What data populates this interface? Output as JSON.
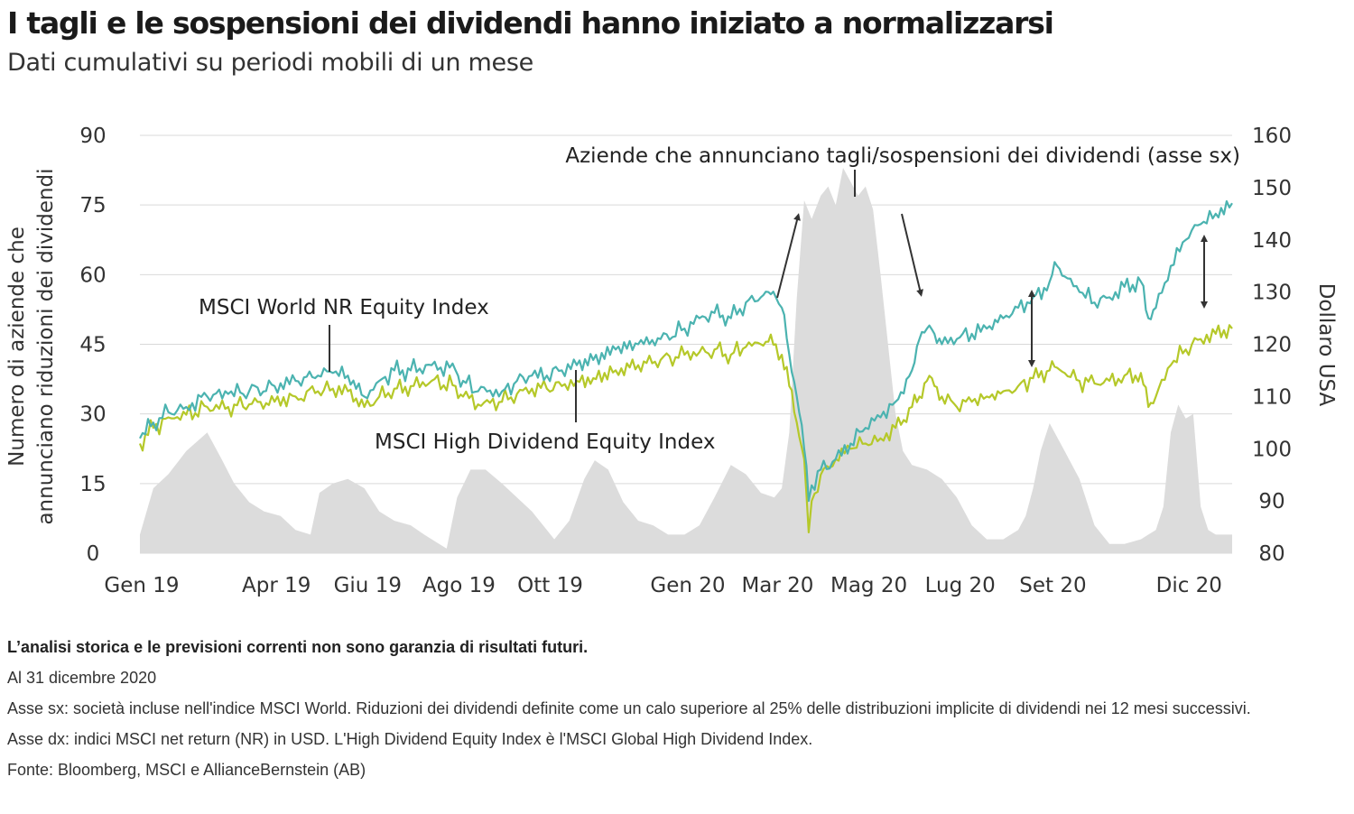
{
  "title": "I tagli e le sospensioni dei dividendi hanno iniziato a normalizzarsi",
  "subtitle": "Dati cumulativi su periodi mobili di un mese",
  "chart_data": {
    "type": "area",
    "colors": {
      "cuts": "#dcdcdc",
      "world": "#4bb3b0",
      "highdiv": "#b5c829",
      "grid": "#d9d9d9"
    },
    "x_tick_labels": [
      "Gen 19",
      "Apr 19",
      "Giu 19",
      "Ago 19",
      "Ott 19",
      "Gen 20",
      "Mar 20",
      "Mag 20",
      "Lug 20",
      "Set 20",
      "Dic 20"
    ],
    "x_tick_dates": [
      "2019-01-01",
      "2019-04-01",
      "2019-06-01",
      "2019-08-01",
      "2019-10-01",
      "2020-01-01",
      "2020-03-01",
      "2020-05-01",
      "2020-07-01",
      "2020-09-01",
      "2020-12-01"
    ],
    "x_range": [
      "2019-01-01",
      "2020-12-31"
    ],
    "y_left": {
      "label": "Numero di aziende che annunciano riduzioni dei dividendi",
      "ticks": [
        0,
        15,
        30,
        45,
        60,
        75,
        90
      ],
      "range": [
        0,
        90
      ]
    },
    "y_right": {
      "label": "Dollaro USA",
      "ticks": [
        80,
        90,
        100,
        110,
        120,
        130,
        140,
        150,
        160
      ],
      "range": [
        80,
        160
      ]
    },
    "grid": true,
    "series": [
      {
        "key": "cuts",
        "axis": "left",
        "kind": "area",
        "x": [
          "2019-01-01",
          "2019-01-10",
          "2019-01-20",
          "2019-02-01",
          "2019-02-15",
          "2019-02-25",
          "2019-03-05",
          "2019-03-15",
          "2019-03-25",
          "2019-04-05",
          "2019-04-15",
          "2019-04-25",
          "2019-05-01",
          "2019-05-10",
          "2019-05-20",
          "2019-05-31",
          "2019-06-10",
          "2019-06-20",
          "2019-07-01",
          "2019-07-10",
          "2019-07-20",
          "2019-07-25",
          "2019-08-01",
          "2019-08-10",
          "2019-08-20",
          "2019-08-31",
          "2019-09-10",
          "2019-09-20",
          "2019-09-30",
          "2019-10-05",
          "2019-10-15",
          "2019-10-25",
          "2019-11-01",
          "2019-11-10",
          "2019-11-20",
          "2019-11-30",
          "2019-12-10",
          "2019-12-20",
          "2019-12-31",
          "2020-01-10",
          "2020-01-20",
          "2020-01-31",
          "2020-02-10",
          "2020-02-20",
          "2020-02-29",
          "2020-03-05",
          "2020-03-10",
          "2020-03-15",
          "2020-03-20",
          "2020-03-25",
          "2020-03-31",
          "2020-04-05",
          "2020-04-10",
          "2020-04-15",
          "2020-04-20",
          "2020-04-25",
          "2020-04-30",
          "2020-05-05",
          "2020-05-10",
          "2020-05-15",
          "2020-05-20",
          "2020-05-25",
          "2020-05-31",
          "2020-06-10",
          "2020-06-20",
          "2020-06-30",
          "2020-07-10",
          "2020-07-20",
          "2020-07-31",
          "2020-08-05",
          "2020-08-10",
          "2020-08-15",
          "2020-08-20",
          "2020-08-25",
          "2020-08-31",
          "2020-09-10",
          "2020-09-20",
          "2020-09-30",
          "2020-10-10",
          "2020-10-20",
          "2020-10-31",
          "2020-11-05",
          "2020-11-10",
          "2020-11-15",
          "2020-11-20",
          "2020-11-25",
          "2020-11-30",
          "2020-12-05",
          "2020-12-10",
          "2020-12-15",
          "2020-12-20",
          "2020-12-31"
        ],
        "values": [
          4,
          14,
          17,
          22,
          26,
          20,
          15,
          11,
          9,
          8,
          5,
          4,
          13,
          15,
          16,
          14,
          9,
          7,
          6,
          4,
          2,
          1,
          12,
          18,
          18,
          15,
          12,
          9,
          5,
          3,
          7,
          16,
          20,
          18,
          11,
          7,
          6,
          4,
          4,
          6,
          12,
          19,
          17,
          13,
          12,
          14,
          26,
          55,
          76,
          72,
          77,
          79,
          75,
          83,
          80,
          77,
          79,
          74,
          60,
          45,
          30,
          22,
          19,
          18,
          16,
          12,
          6,
          3,
          3,
          4,
          5,
          8,
          14,
          22,
          28,
          22,
          16,
          6,
          2,
          2,
          3,
          4,
          5,
          10,
          26,
          32,
          29,
          30,
          10,
          5,
          4,
          4
        ]
      },
      {
        "key": "world",
        "axis": "right",
        "name": "MSCI World NR Equity Index",
        "kind": "line",
        "x": [
          "2019-01-01",
          "2019-01-10",
          "2019-01-20",
          "2019-02-01",
          "2019-02-15",
          "2019-03-01",
          "2019-03-15",
          "2019-04-01",
          "2019-04-15",
          "2019-04-30",
          "2019-05-10",
          "2019-05-20",
          "2019-05-31",
          "2019-06-10",
          "2019-06-20",
          "2019-07-01",
          "2019-07-15",
          "2019-07-31",
          "2019-08-05",
          "2019-08-15",
          "2019-08-31",
          "2019-09-10",
          "2019-09-20",
          "2019-09-30",
          "2019-10-10",
          "2019-10-20",
          "2019-10-31",
          "2019-11-15",
          "2019-11-30",
          "2019-12-15",
          "2019-12-31",
          "2020-01-10",
          "2020-01-20",
          "2020-01-31",
          "2020-02-10",
          "2020-02-20",
          "2020-02-25",
          "2020-03-01",
          "2020-03-05",
          "2020-03-10",
          "2020-03-15",
          "2020-03-20",
          "2020-03-23",
          "2020-03-25",
          "2020-03-31",
          "2020-04-10",
          "2020-04-20",
          "2020-04-30",
          "2020-05-10",
          "2020-05-20",
          "2020-05-31",
          "2020-06-05",
          "2020-06-10",
          "2020-06-15",
          "2020-06-20",
          "2020-06-30",
          "2020-07-10",
          "2020-07-20",
          "2020-07-31",
          "2020-08-10",
          "2020-08-20",
          "2020-08-31",
          "2020-09-05",
          "2020-09-10",
          "2020-09-20",
          "2020-09-30",
          "2020-10-10",
          "2020-10-20",
          "2020-10-31",
          "2020-11-05",
          "2020-11-10",
          "2020-11-20",
          "2020-11-30",
          "2020-12-10",
          "2020-12-20",
          "2020-12-31"
        ],
        "values": [
          102,
          105,
          107,
          108,
          110,
          110.5,
          111,
          112,
          113,
          114,
          114.5,
          114,
          110,
          113,
          115,
          115,
          116,
          115,
          113,
          111,
          111,
          113,
          114,
          114,
          115,
          116,
          117,
          119,
          120,
          121,
          123,
          125,
          126,
          125,
          128,
          129,
          130,
          129,
          127,
          118,
          110,
          100,
          90,
          93,
          96,
          98,
          101,
          104,
          106,
          109,
          115,
          121,
          123,
          122,
          120,
          121,
          122,
          123,
          125,
          127,
          129,
          132,
          135,
          133,
          130,
          128,
          129,
          131,
          132,
          125,
          127,
          135,
          140,
          143,
          145,
          147
        ]
      },
      {
        "key": "highdiv",
        "axis": "right",
        "name": "MSCI High Dividend Equity Index",
        "kind": "line",
        "x": [
          "2019-01-01",
          "2019-01-10",
          "2019-01-20",
          "2019-02-01",
          "2019-02-15",
          "2019-03-01",
          "2019-03-15",
          "2019-04-01",
          "2019-04-15",
          "2019-04-30",
          "2019-05-10",
          "2019-05-20",
          "2019-05-31",
          "2019-06-10",
          "2019-06-20",
          "2019-07-01",
          "2019-07-15",
          "2019-07-31",
          "2019-08-05",
          "2019-08-15",
          "2019-08-31",
          "2019-09-10",
          "2019-09-20",
          "2019-09-30",
          "2019-10-10",
          "2019-10-20",
          "2019-10-31",
          "2019-11-15",
          "2019-11-30",
          "2019-12-15",
          "2019-12-31",
          "2020-01-10",
          "2020-01-20",
          "2020-01-31",
          "2020-02-10",
          "2020-02-20",
          "2020-02-25",
          "2020-03-01",
          "2020-03-05",
          "2020-03-10",
          "2020-03-15",
          "2020-03-20",
          "2020-03-23",
          "2020-03-25",
          "2020-03-31",
          "2020-04-10",
          "2020-04-20",
          "2020-04-30",
          "2020-05-10",
          "2020-05-20",
          "2020-05-31",
          "2020-06-05",
          "2020-06-10",
          "2020-06-15",
          "2020-06-20",
          "2020-06-30",
          "2020-07-10",
          "2020-07-20",
          "2020-07-31",
          "2020-08-10",
          "2020-08-20",
          "2020-08-31",
          "2020-09-05",
          "2020-09-10",
          "2020-09-20",
          "2020-09-30",
          "2020-10-10",
          "2020-10-20",
          "2020-10-31",
          "2020-11-05",
          "2020-11-10",
          "2020-11-20",
          "2020-11-30",
          "2020-12-10",
          "2020-12-20",
          "2020-12-31"
        ],
        "values": [
          101,
          104,
          106,
          106.5,
          108,
          108,
          108.5,
          109,
          110,
          111,
          111.5,
          111,
          108,
          110,
          111.5,
          112,
          113,
          112,
          110,
          108.5,
          109,
          110.5,
          111.5,
          111.5,
          112,
          113,
          113.5,
          115,
          116,
          117,
          118,
          118.5,
          119,
          118,
          119.5,
          120,
          120.5,
          120,
          118,
          112,
          105,
          98,
          84,
          90,
          95,
          98,
          100,
          101,
          102,
          104,
          108,
          110,
          113,
          112,
          110,
          108,
          109,
          110,
          111,
          112,
          113.5,
          115,
          115.5,
          114.5,
          113,
          112.5,
          113,
          114,
          114.5,
          108,
          110,
          116,
          119,
          121,
          122,
          123
        ]
      }
    ],
    "annotations": {
      "cuts_label": "Aziende che annunciano tagli/sospensioni dei dividendi (asse sx)",
      "world_label": "MSCI World NR Equity Index",
      "highdiv_label": "MSCI High Dividend Equity Index"
    }
  },
  "notes": {
    "disclaimer": "L’analisi storica e le previsioni correnti non sono garanzia di risultati futuri.",
    "date": "Al 31 dicembre 2020",
    "left_axis": "Asse sx: società incluse nell'indice MSCI World. Riduzioni dei dividendi definite come un calo superiore al 25% delle distribuzioni implicite di dividendi nei 12 mesi successivi.",
    "right_axis": "Asse dx: indici MSCI net return (NR) in USD. L'High Dividend Equity Index è l'MSCI Global High Dividend Index.",
    "source": "Fonte: Bloomberg, MSCI e AllianceBernstein (AB)"
  }
}
